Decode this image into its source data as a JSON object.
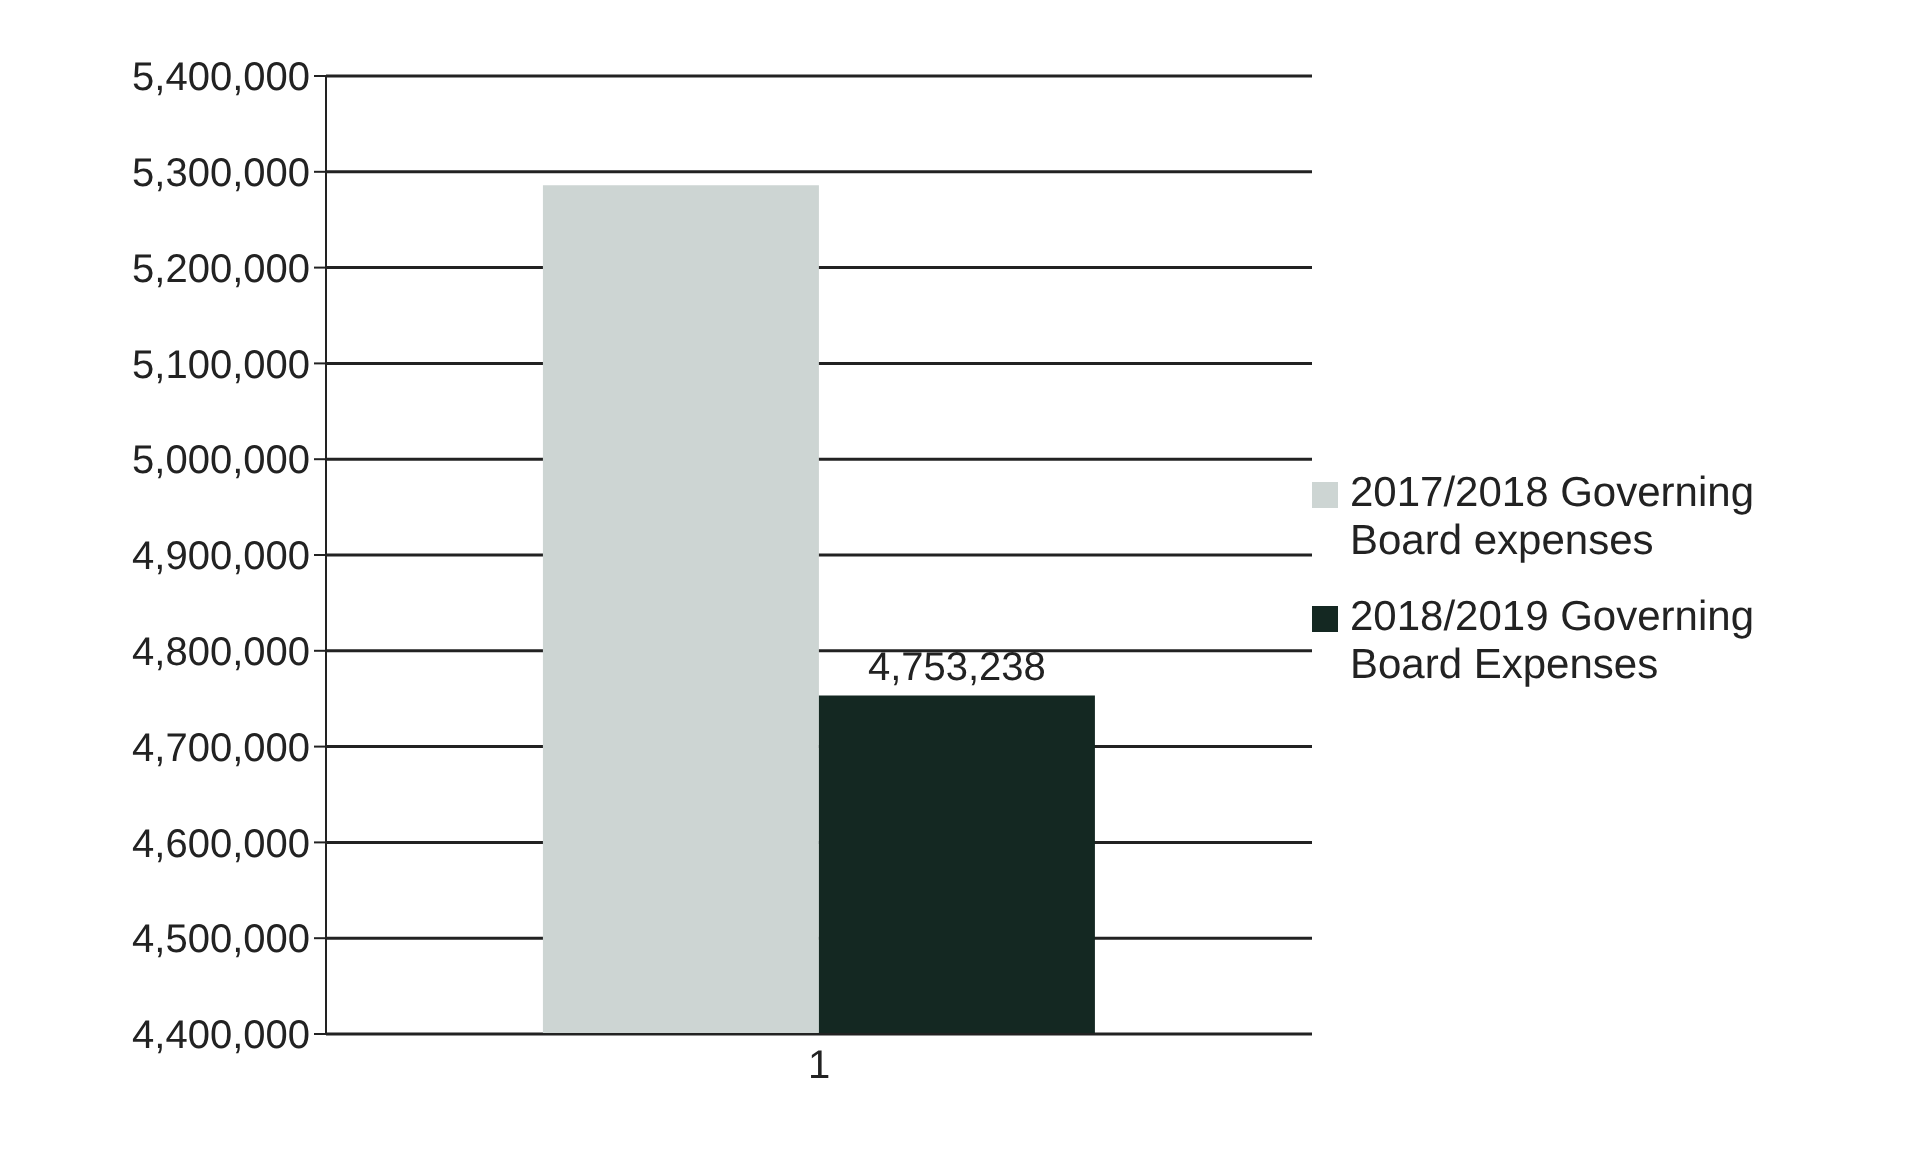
{
  "chart_data": {
    "type": "bar",
    "categories": [
      "1"
    ],
    "series": [
      {
        "name": "2017/2018 Governing Board expenses",
        "color": "#cdd5d3",
        "values": [
          5286000
        ],
        "value_labels": [
          null
        ]
      },
      {
        "name": "2018/2019 Governing Board Expenses",
        "color": "#142822",
        "values": [
          4753238
        ],
        "value_labels": [
          "4,753,238"
        ]
      }
    ],
    "ylim": [
      4400000,
      5400000
    ],
    "yticks": [
      {
        "value": 4400000,
        "label": "4,400,000"
      },
      {
        "value": 4500000,
        "label": "4,500,000"
      },
      {
        "value": 4600000,
        "label": "4,600,000"
      },
      {
        "value": 4700000,
        "label": "4,700,000"
      },
      {
        "value": 4800000,
        "label": "4,800,000"
      },
      {
        "value": 4900000,
        "label": "4,900,000"
      },
      {
        "value": 5000000,
        "label": "5,000,000"
      },
      {
        "value": 5100000,
        "label": "5,100,000"
      },
      {
        "value": 5200000,
        "label": "5,200,000"
      },
      {
        "value": 5300000,
        "label": "5,300,000"
      },
      {
        "value": 5400000,
        "label": "5,400,000"
      }
    ],
    "grid": "y",
    "legend": "right"
  }
}
